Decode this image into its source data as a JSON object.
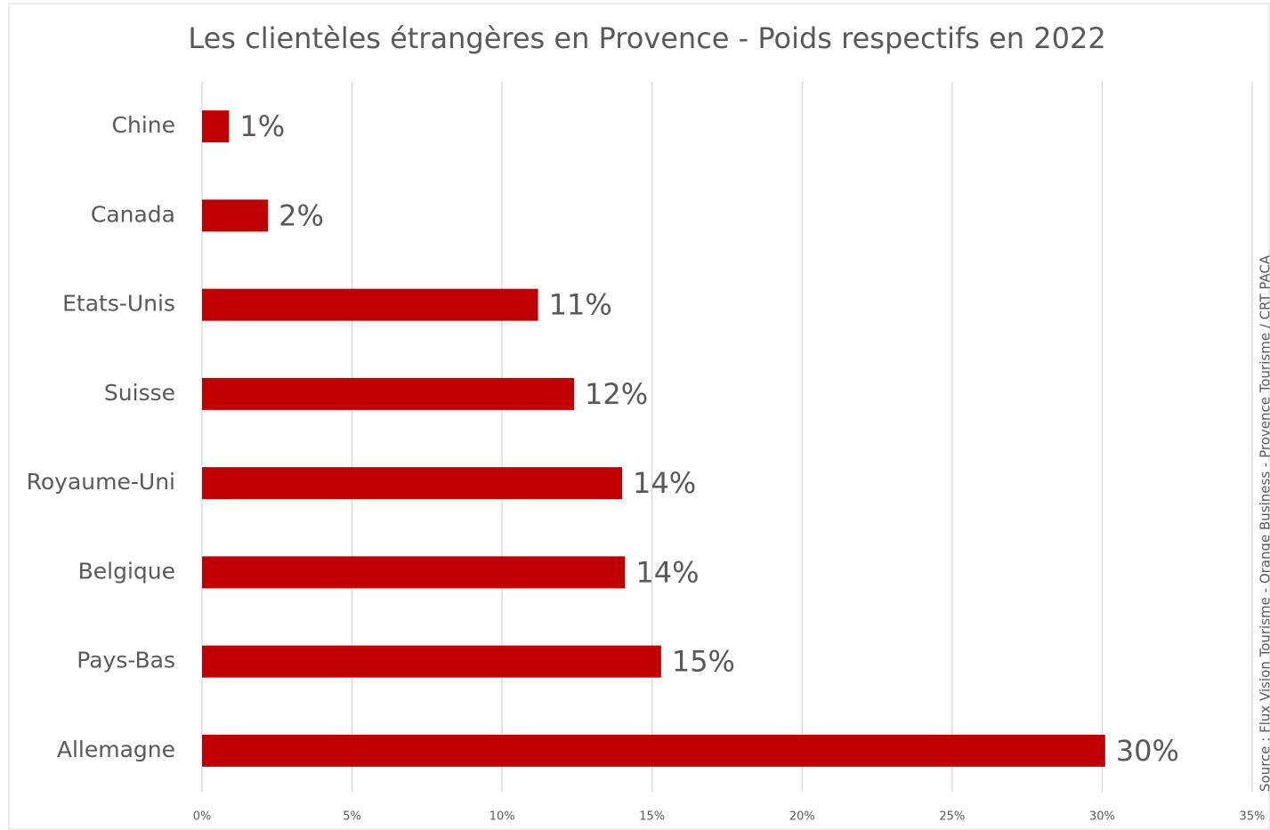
{
  "chart_data": {
    "type": "bar",
    "orientation": "horizontal",
    "title": "Les clientèles étrangères en Provence - Poids respectifs en 2022",
    "source": "Source : Flux Vision Tourisme - Orange Business - Provence Tourisme / CRT PACA",
    "categories": [
      "Chine",
      "Canada",
      "Etats-Unis",
      "Suisse",
      "Royaume-Uni",
      "Belgique",
      "Pays-Bas",
      "Allemagne"
    ],
    "values": [
      0.9,
      2.2,
      11.2,
      12.4,
      14.0,
      14.1,
      15.3,
      30.1
    ],
    "value_labels": [
      "1%",
      "2%",
      "11%",
      "12%",
      "14%",
      "14%",
      "15%",
      "30%"
    ],
    "color": "#c00000",
    "xlim": [
      0,
      35
    ],
    "xticks": [
      {
        "value": 0,
        "label": "0%"
      },
      {
        "value": 5,
        "label": "5%"
      },
      {
        "value": 10,
        "label": "10%"
      },
      {
        "value": 15,
        "label": "15%"
      },
      {
        "value": 20,
        "label": "20%"
      },
      {
        "value": 25,
        "label": "25%"
      },
      {
        "value": 30,
        "label": "30%"
      },
      {
        "value": 35,
        "label": "35%"
      }
    ],
    "grid": true
  }
}
